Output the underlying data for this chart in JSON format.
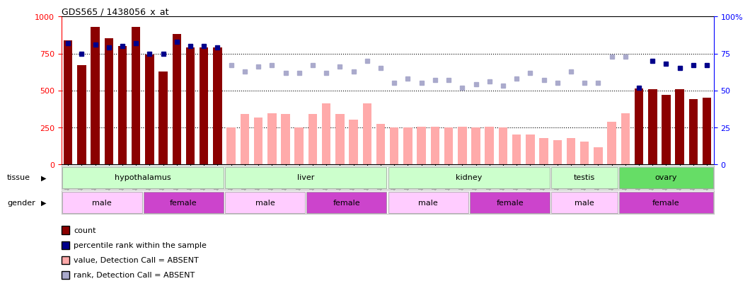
{
  "title": "GDS565 / 1438056_x_at",
  "samples": [
    "GSM19215",
    "GSM19216",
    "GSM19217",
    "GSM19218",
    "GSM19219",
    "GSM19220",
    "GSM19221",
    "GSM19222",
    "GSM19223",
    "GSM19224",
    "GSM19225",
    "GSM19226",
    "GSM19227",
    "GSM19228",
    "GSM19229",
    "GSM19230",
    "GSM19231",
    "GSM19232",
    "GSM19233",
    "GSM19234",
    "GSM19235",
    "GSM19236",
    "GSM19237",
    "GSM19238",
    "GSM19239",
    "GSM19240",
    "GSM19241",
    "GSM19242",
    "GSM19243",
    "GSM19244",
    "GSM19245",
    "GSM19246",
    "GSM19247",
    "GSM19248",
    "GSM19249",
    "GSM19250",
    "GSM19251",
    "GSM19252",
    "GSM19253",
    "GSM19254",
    "GSM19255",
    "GSM19256",
    "GSM19257",
    "GSM19258",
    "GSM19259",
    "GSM19260",
    "GSM19261",
    "GSM19262"
  ],
  "bar_values": [
    840,
    670,
    930,
    855,
    800,
    930,
    745,
    630,
    880,
    790,
    790,
    790,
    250,
    340,
    315,
    345,
    340,
    250,
    340,
    410,
    340,
    300,
    410,
    275,
    250,
    250,
    255,
    255,
    250,
    255,
    250,
    255,
    250,
    200,
    200,
    175,
    165,
    175,
    155,
    115,
    290,
    345,
    515,
    510,
    470,
    510,
    440,
    450
  ],
  "bar_absent": [
    false,
    false,
    false,
    false,
    false,
    false,
    false,
    false,
    false,
    false,
    false,
    false,
    true,
    true,
    true,
    true,
    true,
    true,
    true,
    true,
    true,
    true,
    true,
    true,
    true,
    true,
    true,
    true,
    true,
    true,
    true,
    true,
    true,
    true,
    true,
    true,
    true,
    true,
    true,
    true,
    true,
    true,
    false,
    false,
    false,
    false,
    false,
    false
  ],
  "rank_values": [
    82,
    75,
    81,
    79,
    80,
    82,
    75,
    75,
    83,
    80,
    80,
    79,
    67,
    63,
    66,
    67,
    62,
    62,
    67,
    62,
    66,
    63,
    70,
    65,
    55,
    58,
    55,
    57,
    57,
    52,
    54,
    56,
    53,
    58,
    62,
    57,
    55,
    63,
    55,
    55,
    73,
    73,
    52,
    70,
    68,
    65,
    67,
    67
  ],
  "rank_absent": [
    false,
    false,
    false,
    false,
    false,
    false,
    false,
    false,
    false,
    false,
    false,
    false,
    true,
    true,
    true,
    true,
    true,
    true,
    true,
    true,
    true,
    true,
    true,
    true,
    true,
    true,
    true,
    true,
    true,
    true,
    true,
    true,
    true,
    true,
    true,
    true,
    true,
    true,
    true,
    true,
    true,
    true,
    false,
    false,
    false,
    false,
    false,
    false
  ],
  "tissue_groups": [
    {
      "label": "hypothalamus",
      "start": 0,
      "end": 11,
      "color": "#ccffcc"
    },
    {
      "label": "liver",
      "start": 12,
      "end": 23,
      "color": "#ccffcc"
    },
    {
      "label": "kidney",
      "start": 24,
      "end": 35,
      "color": "#ccffcc"
    },
    {
      "label": "testis",
      "start": 36,
      "end": 40,
      "color": "#ccffcc"
    },
    {
      "label": "ovary",
      "start": 41,
      "end": 47,
      "color": "#66dd66"
    }
  ],
  "gender_groups": [
    {
      "label": "male",
      "start": 0,
      "end": 5,
      "color": "#ffccff"
    },
    {
      "label": "female",
      "start": 6,
      "end": 11,
      "color": "#cc44cc"
    },
    {
      "label": "male",
      "start": 12,
      "end": 17,
      "color": "#ffccff"
    },
    {
      "label": "female",
      "start": 18,
      "end": 23,
      "color": "#cc44cc"
    },
    {
      "label": "male",
      "start": 24,
      "end": 29,
      "color": "#ffccff"
    },
    {
      "label": "female",
      "start": 30,
      "end": 35,
      "color": "#cc44cc"
    },
    {
      "label": "male",
      "start": 36,
      "end": 40,
      "color": "#ffccff"
    },
    {
      "label": "female",
      "start": 41,
      "end": 47,
      "color": "#cc44cc"
    }
  ],
  "ylim_left": [
    0,
    1000
  ],
  "ylim_right": [
    0,
    100
  ],
  "yticks_left": [
    0,
    250,
    500,
    750,
    1000
  ],
  "yticks_right": [
    0,
    25,
    50,
    75,
    100
  ],
  "bar_color_present": "#8b0000",
  "bar_color_absent": "#ffaaaa",
  "dot_color_present": "#00008b",
  "dot_color_absent": "#aaaacc",
  "background_color": "white",
  "legend_items": [
    {
      "color": "#8b0000",
      "label": "count"
    },
    {
      "color": "#00008b",
      "label": "percentile rank within the sample"
    },
    {
      "color": "#ffaaaa",
      "label": "value, Detection Call = ABSENT"
    },
    {
      "color": "#aaaacc",
      "label": "rank, Detection Call = ABSENT"
    }
  ]
}
